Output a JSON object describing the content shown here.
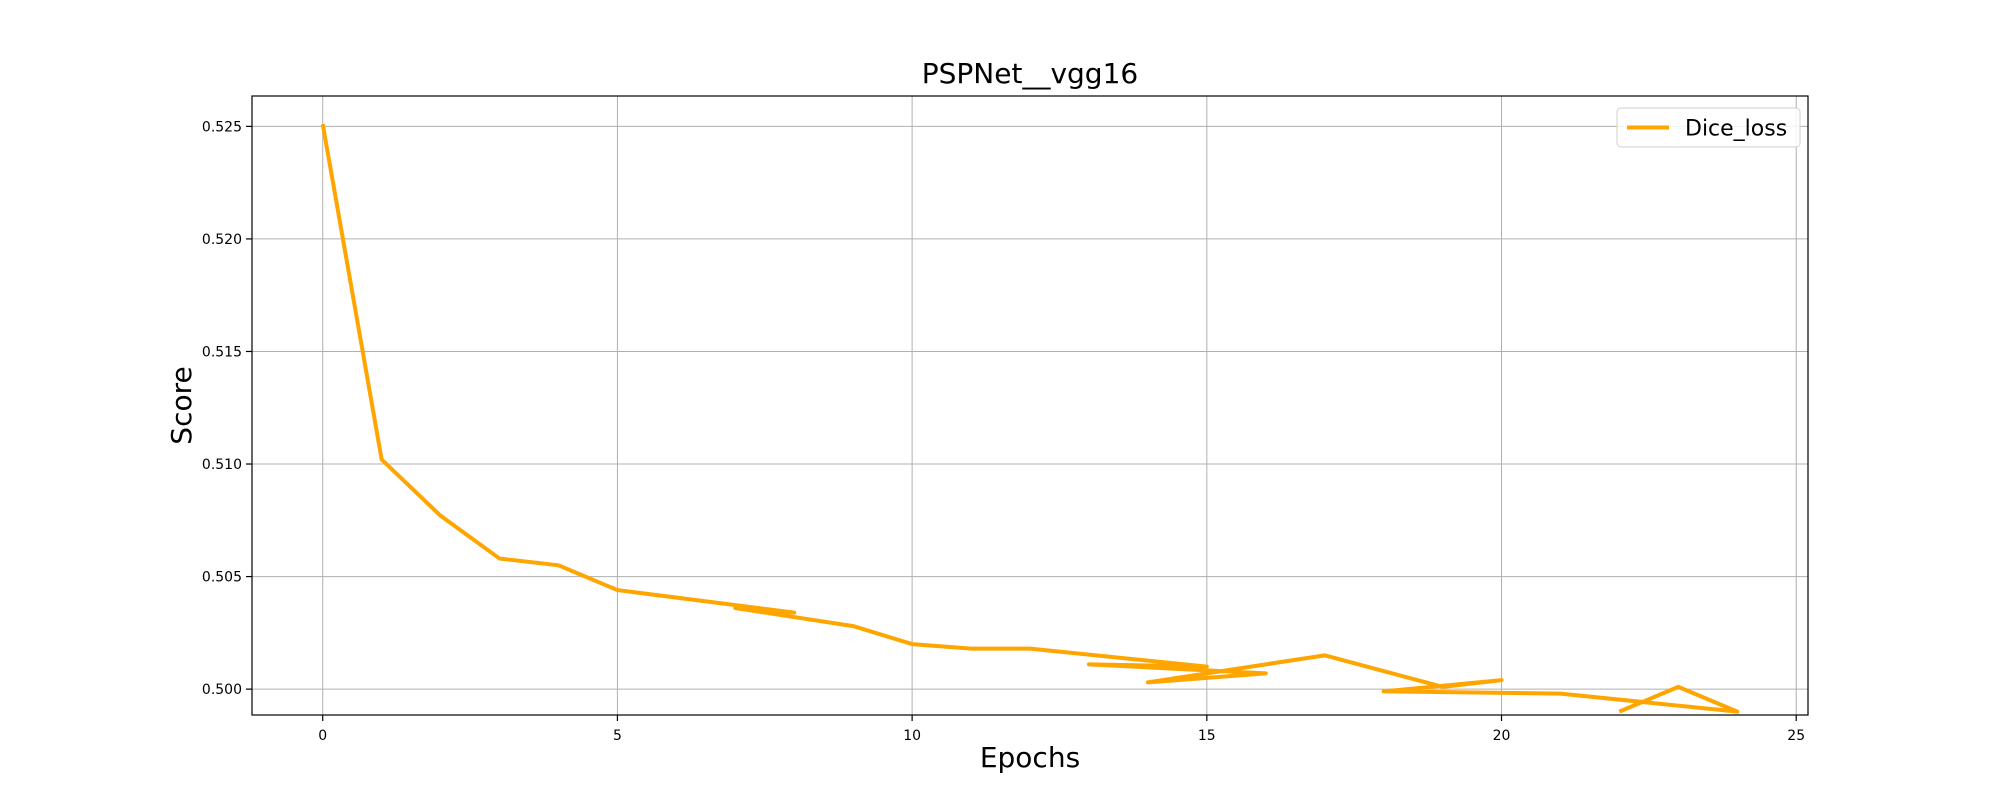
{
  "chart_data": {
    "type": "line",
    "title": "PSPNet__vgg16",
    "xlabel": "Epochs",
    "ylabel": "Score",
    "xlim": [
      -1.2,
      25.2
    ],
    "ylim": [
      0.49885,
      0.52635
    ],
    "xticks": [
      0,
      5,
      10,
      15,
      20,
      25
    ],
    "xtick_labels": [
      "0",
      "5",
      "10",
      "15",
      "20",
      "25"
    ],
    "yticks": [
      0.5,
      0.505,
      0.51,
      0.515,
      0.52,
      0.525
    ],
    "ytick_labels": [
      "0.500",
      "0.505",
      "0.510",
      "0.515",
      "0.520",
      "0.525"
    ],
    "grid": true,
    "legend_position": "top-right",
    "series": [
      {
        "name": "Dice_loss",
        "color": "#FFA500",
        "points": [
          [
            0,
            0.5251
          ],
          [
            1,
            0.5102
          ],
          [
            2,
            0.5077
          ],
          [
            3,
            0.5058
          ],
          [
            4,
            0.5055
          ],
          [
            5,
            0.5044
          ],
          [
            8,
            0.5034
          ],
          [
            7,
            0.5036
          ],
          [
            9,
            0.5028
          ],
          [
            10,
            0.502
          ],
          [
            11,
            0.5018
          ],
          [
            12,
            0.5018
          ],
          [
            15,
            0.501
          ],
          [
            13,
            0.5011
          ],
          [
            16,
            0.5007
          ],
          [
            14,
            0.5003
          ],
          [
            15.5,
            0.5009
          ],
          [
            17,
            0.5015
          ],
          [
            19,
            0.5001
          ],
          [
            20,
            0.5004
          ],
          [
            18,
            0.4999
          ],
          [
            21,
            0.4998
          ],
          [
            24,
            0.499
          ],
          [
            23,
            0.5001
          ],
          [
            22,
            0.499
          ]
        ]
      }
    ]
  }
}
